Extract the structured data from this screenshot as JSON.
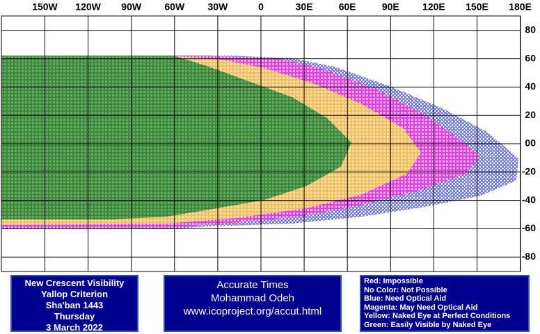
{
  "map": {
    "longitude_labels": [
      {
        "value": -150,
        "label": "150W"
      },
      {
        "value": -120,
        "label": "120W"
      },
      {
        "value": -90,
        "label": "90W"
      },
      {
        "value": -60,
        "label": "60W"
      },
      {
        "value": -30,
        "label": "30W"
      },
      0,
      {
        "value": 30,
        "label": "30E"
      },
      {
        "value": 60,
        "label": "60E"
      },
      {
        "value": 90,
        "label": "90E"
      },
      {
        "value": 120,
        "label": "120E"
      },
      {
        "value": 150,
        "label": "150E"
      },
      {
        "value": 180,
        "label": "180E"
      }
    ],
    "latitude_labels": [
      80,
      60,
      40,
      20,
      {
        "value": 0,
        "label": "00"
      },
      -20,
      -40,
      -60,
      -80
    ]
  },
  "info": [
    "New Crescent Visibility",
    "Yallop Criterion",
    "Sha'ban 1443",
    "Thursday",
    "3 March 2022"
  ],
  "credits": [
    "Accurate Times",
    "Mohammad Odeh",
    "www.icoproject.org/accut.html"
  ],
  "legend": [
    "Red: Impossible",
    "No Color: Not Possible",
    "Blue: Need Optical Aid",
    "Magenta: May Need Optical Aid",
    "Yellow: Naked Eye at Perfect Conditions",
    "Green: Easily Visible by Naked Eye"
  ]
}
